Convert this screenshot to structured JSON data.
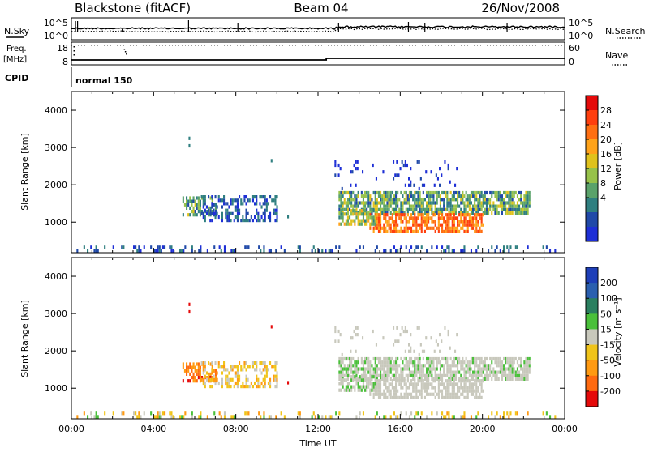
{
  "header": {
    "station": "Blackstone (fitACF)",
    "beam": "Beam 04",
    "date": "26/Nov/2008"
  },
  "status_panels": {
    "nsky_label": "N.Sky",
    "nsearch_label": "N.Search",
    "nsearch_style": "dotted",
    "noise_ticks_left": [
      "10^5",
      "10^0"
    ],
    "noise_ticks_right": [
      "10^5",
      "10^0"
    ],
    "freq_label_line1": "Freq.",
    "freq_label_line2": "[MHz]",
    "freq_ticks": [
      "18",
      "8"
    ],
    "nave_label": "Nave",
    "nave_style": "dotted",
    "nave_ticks": [
      "60",
      "0"
    ],
    "cpid_label": "CPID",
    "cpid_value": "normal 150"
  },
  "chart_data": [
    {
      "type": "heatmap",
      "title": "",
      "xlabel": "",
      "ylabel": "Slant Range [km]",
      "x_ticks": [
        "00:00",
        "04:00",
        "08:00",
        "12:00",
        "16:00",
        "20:00",
        "00:00"
      ],
      "x_range_hours": [
        0,
        24
      ],
      "y_ticks": [
        1000,
        2000,
        3000,
        4000
      ],
      "ylim": [
        180,
        4500
      ],
      "colorbar": {
        "label": "Power [dB]",
        "ticks": [
          "4",
          "8",
          "12",
          "16",
          "20",
          "24",
          "28"
        ],
        "colors": [
          "#1e2fd6",
          "#2049a8",
          "#2f7f80",
          "#5aa26a",
          "#97c24a",
          "#e0c21c",
          "#ffa31a",
          "#ff6f12",
          "#ff3f0e",
          "#e50a0a"
        ]
      },
      "regions": [
        {
          "name": "ground scatter",
          "t": [
            0.0,
            23.5
          ],
          "r": [
            200,
            320
          ],
          "level": "low"
        },
        {
          "name": "morning patch",
          "t": [
            5.4,
            7.0
          ],
          "r": [
            1150,
            1650
          ],
          "level": "mid"
        },
        {
          "name": "morning band",
          "t": [
            6.3,
            10.0
          ],
          "r": [
            1000,
            1700
          ],
          "level": "low-mid"
        },
        {
          "name": "evening band",
          "t": [
            13.0,
            22.3
          ],
          "r": [
            1200,
            1800
          ],
          "level": "mid"
        },
        {
          "name": "evening core",
          "t": [
            14.5,
            20.0
          ],
          "r": [
            700,
            1200
          ],
          "level": "high"
        },
        {
          "name": "upper scatter",
          "t": [
            12.8,
            19.0
          ],
          "r": [
            1850,
            2600
          ],
          "level": "low"
        }
      ]
    },
    {
      "type": "heatmap",
      "title": "",
      "xlabel": "Time UT",
      "ylabel": "Slant Range [km]",
      "x_ticks": [
        "00:00",
        "04:00",
        "08:00",
        "12:00",
        "16:00",
        "20:00",
        "00:00"
      ],
      "x_range_hours": [
        0,
        24
      ],
      "y_ticks": [
        1000,
        2000,
        3000,
        4000
      ],
      "ylim": [
        180,
        4500
      ],
      "colorbar": {
        "label": "Velocity [m s⁻¹]",
        "ticks": [
          "200",
          "100",
          "50",
          "15",
          "-15",
          "-50",
          "-100",
          "-200"
        ],
        "colors": [
          "#1e3fb8",
          "#2a5faf",
          "#2a7f5f",
          "#4ac03a",
          "#c8c8bc",
          "#f0c41a",
          "#ff9a12",
          "#ff6a10",
          "#e50a0a"
        ]
      },
      "regions": [
        {
          "name": "ground scatter",
          "t": [
            0.0,
            23.5
          ],
          "r": [
            200,
            320
          ],
          "level": "weak negative"
        },
        {
          "name": "morning patch",
          "t": [
            5.4,
            7.0
          ],
          "r": [
            1150,
            1650
          ],
          "level": "negative"
        },
        {
          "name": "morning band",
          "t": [
            6.3,
            10.0
          ],
          "r": [
            1000,
            1700
          ],
          "level": "weak negative"
        },
        {
          "name": "evening band",
          "t": [
            13.0,
            22.3
          ],
          "r": [
            700,
            2100
          ],
          "level": "near zero"
        }
      ]
    }
  ]
}
